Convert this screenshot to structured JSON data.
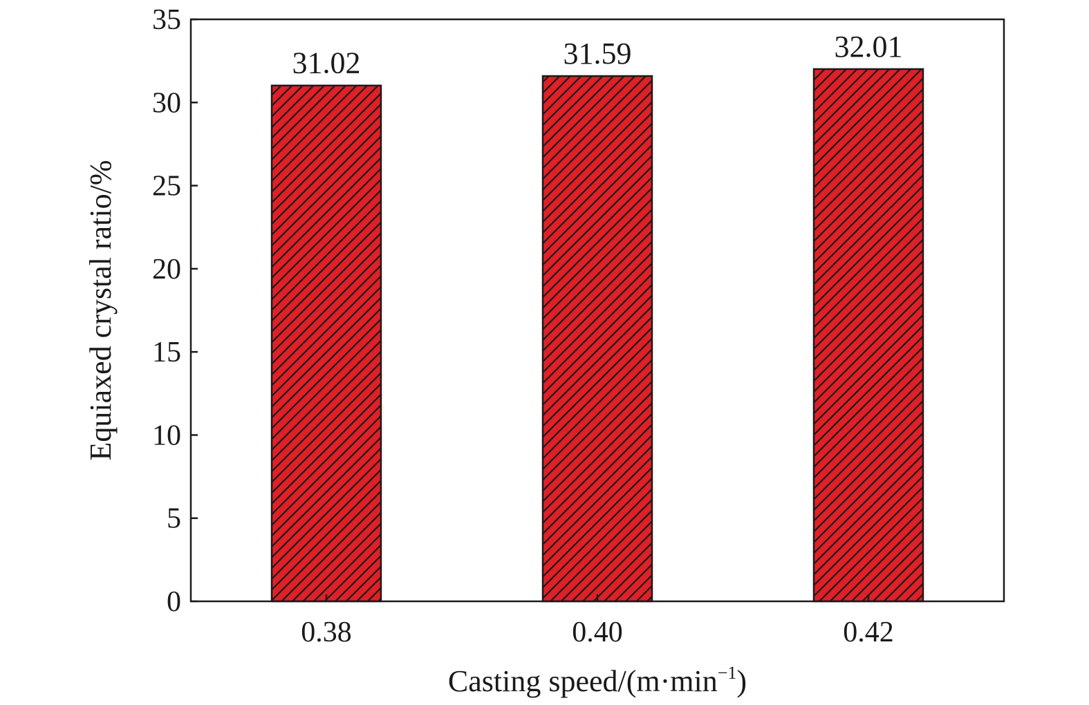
{
  "chart_data": {
    "type": "bar",
    "categories": [
      "0.38",
      "0.40",
      "0.42"
    ],
    "values": [
      31.02,
      31.59,
      32.01
    ],
    "data_labels": [
      "31.02",
      "31.59",
      "32.01"
    ],
    "xlabel": "Casting speed/(m·min",
    "xlabel_superscript": "−1",
    "xlabel_close": ")",
    "ylabel": "Equiaxed crystal ratio/%",
    "ylim": [
      0,
      35
    ],
    "yticks": [
      "0",
      "5",
      "10",
      "15",
      "20",
      "25",
      "30",
      "35"
    ],
    "grid": false,
    "legend": "none",
    "bar_fill": "#e02027",
    "bar_hatch": "#1a1a1a",
    "bar_edge": "#1a1a1a"
  }
}
